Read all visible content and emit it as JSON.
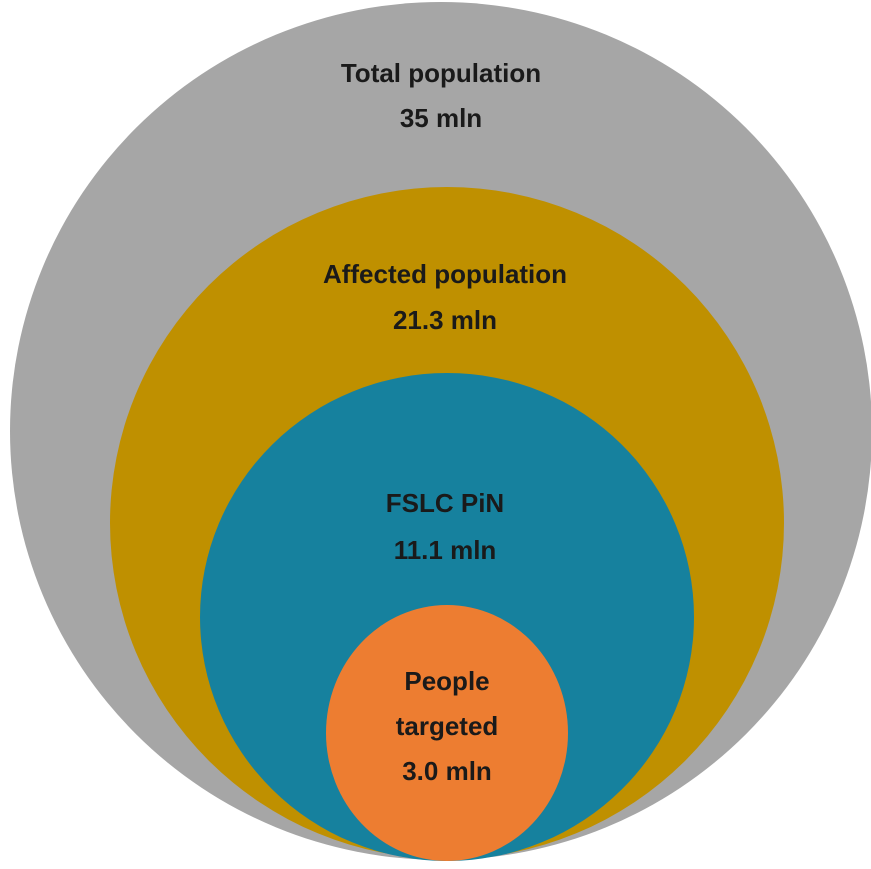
{
  "diagram": {
    "type": "nested-circles",
    "circles": [
      {
        "id": "total",
        "lines": [
          "Total population",
          "35 mln"
        ],
        "color": "#a6a6a6"
      },
      {
        "id": "affected",
        "lines": [
          "Affected population",
          "21.3 mln"
        ],
        "color": "#bf9000"
      },
      {
        "id": "fslc",
        "lines": [
          "FSLC PiN",
          "11.1 mln"
        ],
        "color": "#16819e"
      },
      {
        "id": "targeted",
        "lines": [
          "People",
          "targeted",
          "3.0 mln"
        ],
        "color": "#ed7d31"
      }
    ],
    "text_color": "#1a1a1a"
  }
}
